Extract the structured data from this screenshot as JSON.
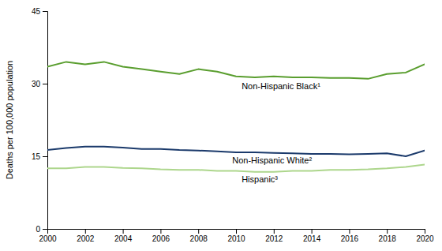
{
  "chart_data": {
    "type": "line",
    "x": [
      2000,
      2001,
      2002,
      2003,
      2004,
      2005,
      2006,
      2007,
      2008,
      2009,
      2010,
      2011,
      2012,
      2013,
      2014,
      2015,
      2016,
      2017,
      2018,
      2019,
      2020
    ],
    "series": [
      {
        "color": "#5a9e2f",
        "values": [
          33.5,
          34.5,
          34.0,
          34.5,
          33.5,
          33.0,
          32.5,
          32.0,
          33.0,
          32.5,
          31.5,
          31.3,
          31.5,
          31.3,
          31.3,
          31.2,
          31.2,
          31.0,
          32.0,
          32.3,
          34.0
        ]
      },
      {
        "color": "#1b3a6b",
        "values": [
          16.3,
          16.7,
          17.0,
          17.0,
          16.8,
          16.5,
          16.5,
          16.3,
          16.2,
          16.0,
          15.8,
          15.8,
          15.7,
          15.6,
          15.5,
          15.5,
          15.4,
          15.5,
          15.6,
          15.0,
          16.2
        ]
      },
      {
        "color": "#add68c",
        "values": [
          12.5,
          12.5,
          12.8,
          12.8,
          12.6,
          12.5,
          12.3,
          12.2,
          12.2,
          12.0,
          12.0,
          11.8,
          11.8,
          12.0,
          12.0,
          12.2,
          12.2,
          12.3,
          12.5,
          12.8,
          13.3
        ]
      }
    ],
    "annotations": [
      {
        "text": "Non-Hispanic Black¹",
        "x": 2010.3,
        "y": 30.5
      },
      {
        "text": "Non-Hispanic White²",
        "x": 2009.8,
        "y": 15.2
      },
      {
        "text": "Hispanic³",
        "x": 2010.3,
        "y": 11.3
      }
    ],
    "ylabel": "Deaths per 100,000 population",
    "xlim": [
      2000,
      2020
    ],
    "xticks": [
      2000,
      2002,
      2004,
      2006,
      2008,
      2010,
      2012,
      2014,
      2016,
      2018,
      2020
    ],
    "ylim": [
      0,
      45
    ],
    "yticks": [
      0,
      15,
      30,
      45
    ],
    "grid": false
  }
}
